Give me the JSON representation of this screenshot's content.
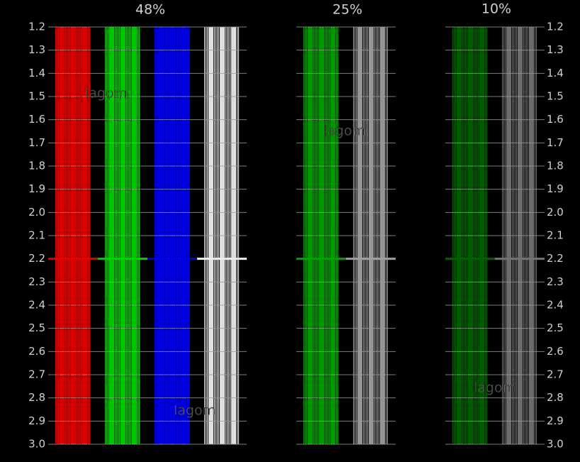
{
  "groups": [
    {
      "label": "48%"
    },
    {
      "label": "25%"
    },
    {
      "label": "10%"
    }
  ],
  "gamma_labels": [
    "1.2",
    "1.3",
    "1.4",
    "1.5",
    "1.6",
    "1.7",
    "1.8",
    "1.9",
    "2.0",
    "2.1",
    "2.2",
    "2.3",
    "2.4",
    "2.5",
    "2.6",
    "2.7",
    "2.8",
    "2.9",
    "3.0"
  ],
  "watermark": "lagom"
}
